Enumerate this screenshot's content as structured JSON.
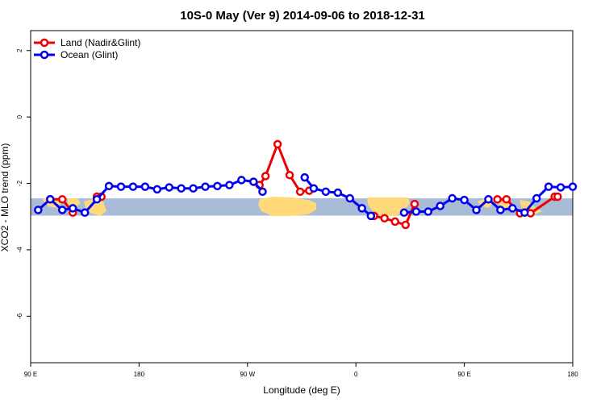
{
  "chart_data": {
    "type": "line",
    "title": "10S-0 May (Ver 9)   2014-09-06 to 2018-12-31",
    "xlabel": "Longitude (deg E)",
    "ylabel": "XCO2 - MLO trend (ppm)",
    "xlim": [
      90,
      450
    ],
    "ylim": [
      -7.4,
      2.6
    ],
    "x_ticks": [
      {
        "value": 90,
        "label": "90 E"
      },
      {
        "value": 162,
        "label": "180"
      },
      {
        "value": 234,
        "label": "90 W"
      },
      {
        "value": 306,
        "label": "0"
      },
      {
        "value": 378,
        "label": "90 E"
      },
      {
        "value": 450,
        "label": "180"
      }
    ],
    "y_ticks": [
      {
        "value": 2,
        "label": "2"
      },
      {
        "value": 0,
        "label": "0"
      },
      {
        "value": -2,
        "label": "-2"
      },
      {
        "value": -4,
        "label": "-4"
      },
      {
        "value": -6,
        "label": "-6"
      }
    ],
    "band": {
      "ymin": -2.97,
      "ymax": -2.45,
      "color": "#a8bcd8"
    },
    "land_color": "#ffd97a",
    "legend": {
      "position": "top-left"
    },
    "series": [
      {
        "name": "Land (Nadir&Glint)",
        "color": "#ee0000",
        "segments": [
          [
            [
              103,
              -2.48
            ],
            [
              111,
              -2.48
            ],
            [
              118,
              -2.88
            ]
          ],
          [
            [
              134,
              -2.4
            ],
            [
              137,
              -2.4
            ]
          ],
          [
            [
              242,
              -2.05
            ],
            [
              246,
              -1.78
            ],
            [
              254,
              -0.82
            ],
            [
              262,
              -1.75
            ],
            [
              269,
              -2.25
            ],
            [
              275,
              -2.22
            ]
          ],
          [
            [
              318,
              -2.98
            ],
            [
              325,
              -3.05
            ],
            [
              332,
              -3.15
            ],
            [
              339,
              -3.25
            ],
            [
              345,
              -2.62
            ]
          ],
          [
            [
              400,
              -2.48
            ],
            [
              406,
              -2.48
            ],
            [
              415,
              -2.9
            ],
            [
              422,
              -2.9
            ],
            [
              438,
              -2.4
            ],
            [
              440,
              -2.4
            ]
          ]
        ]
      },
      {
        "name": "Ocean (Glint)",
        "color": "#0000ee",
        "segments": [
          [
            [
              95,
              -2.8
            ],
            [
              103,
              -2.48
            ],
            [
              111,
              -2.8
            ],
            [
              118,
              -2.75
            ],
            [
              126,
              -2.88
            ],
            [
              134,
              -2.48
            ],
            [
              142,
              -2.08
            ],
            [
              150,
              -2.1
            ],
            [
              158,
              -2.1
            ],
            [
              166,
              -2.1
            ],
            [
              174,
              -2.18
            ],
            [
              182,
              -2.12
            ],
            [
              190,
              -2.15
            ],
            [
              198,
              -2.15
            ],
            [
              206,
              -2.1
            ],
            [
              214,
              -2.08
            ],
            [
              222,
              -2.05
            ],
            [
              230,
              -1.9
            ],
            [
              238,
              -1.95
            ],
            [
              244,
              -2.25
            ]
          ],
          [
            [
              272,
              -1.82
            ],
            [
              278,
              -2.15
            ],
            [
              286,
              -2.25
            ],
            [
              294,
              -2.28
            ],
            [
              302,
              -2.45
            ],
            [
              310,
              -2.75
            ],
            [
              316,
              -2.98
            ]
          ],
          [
            [
              338,
              -2.88
            ],
            [
              346,
              -2.85
            ],
            [
              354,
              -2.85
            ],
            [
              362,
              -2.68
            ],
            [
              370,
              -2.45
            ],
            [
              378,
              -2.5
            ],
            [
              386,
              -2.8
            ],
            [
              394,
              -2.48
            ],
            [
              402,
              -2.8
            ],
            [
              410,
              -2.75
            ],
            [
              418,
              -2.88
            ],
            [
              426,
              -2.45
            ],
            [
              434,
              -2.1
            ],
            [
              442,
              -2.12
            ],
            [
              450,
              -2.1
            ]
          ]
        ]
      }
    ]
  }
}
